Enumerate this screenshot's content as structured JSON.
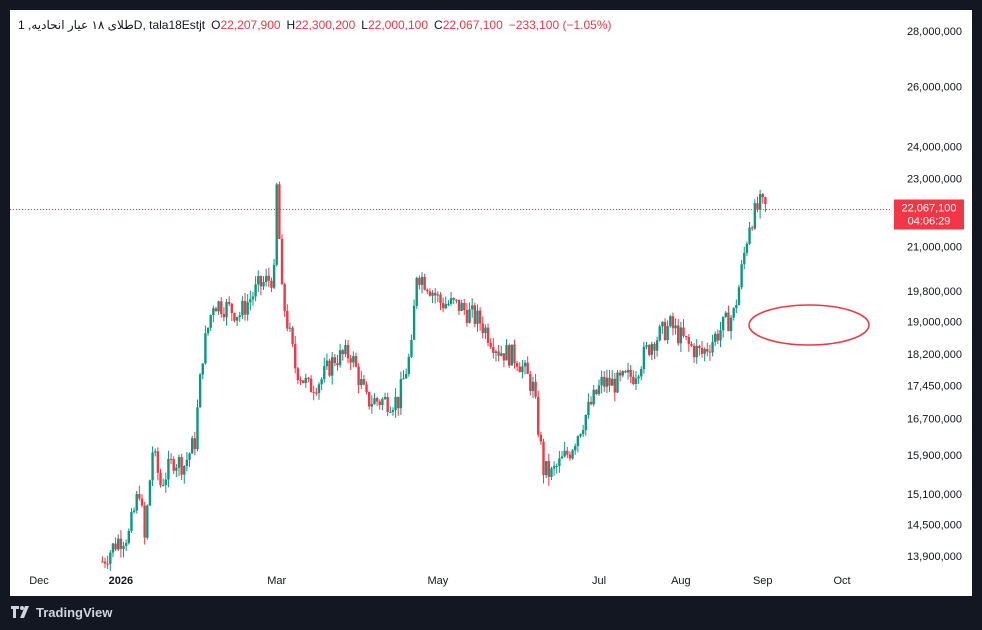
{
  "legend": {
    "symbol": "1 ,طلای ۱۸ عیار انحادیه",
    "interval": "D",
    "source": ", tala18Estjt",
    "open_label": "O",
    "open": "22,207,900",
    "high_label": "H",
    "high": "22,300,200",
    "low_label": "L",
    "low": "22,000,100",
    "close_label": "C",
    "close": "22,067,100",
    "change": "−233,100 (−1.05%)"
  },
  "price_tag": {
    "price": "22,067,100",
    "countdown": "04:06:29"
  },
  "footer": {
    "brand": "TradingView"
  },
  "colors": {
    "up": "#089981",
    "down": "#f23645",
    "background": "#ffffff",
    "frame": "#131722",
    "annotation": "#f23645"
  },
  "chart_data": {
    "type": "candlestick",
    "x_axis": {
      "ticks": [
        "Dec",
        "2026",
        "Mar",
        "May",
        "Jul",
        "Aug",
        "Sep",
        "Oct"
      ]
    },
    "y_axis": {
      "ticks": [
        "28,000,000",
        "26,000,000",
        "24,000,000",
        "23,000,000",
        "21,000,000",
        "19,800,000",
        "19,000,000",
        "18,200,000",
        "17,450,000",
        "16,700,000",
        "15,900,000",
        "15,100,000",
        "14,500,000",
        "13,900,000"
      ],
      "scale": "log",
      "range": [
        13700000,
        28500000
      ]
    },
    "current_price": 22067100,
    "anchors": [
      [
        "2025-12-25",
        13800000
      ],
      [
        "2025-12-31",
        14200000
      ],
      [
        "2026-01-04",
        14300000
      ],
      [
        "2026-01-08",
        15200000
      ],
      [
        "2026-01-10",
        14200000
      ],
      [
        "2026-01-13",
        16000000
      ],
      [
        "2026-01-16",
        15300000
      ],
      [
        "2026-01-21",
        15800000
      ],
      [
        "2026-01-25",
        15700000
      ],
      [
        "2026-01-29",
        16200000
      ],
      [
        "2026-02-01",
        18200000
      ],
      [
        "2026-02-05",
        19500000
      ],
      [
        "2026-02-09",
        19400000
      ],
      [
        "2026-02-15",
        19200000
      ],
      [
        "2026-02-22",
        19900000
      ],
      [
        "2026-02-28",
        20200000
      ],
      [
        "2026-03-01",
        22700000
      ],
      [
        "2026-03-03",
        19700000
      ],
      [
        "2026-03-08",
        17900000
      ],
      [
        "2026-03-13",
        17400000
      ],
      [
        "2026-03-18",
        17600000
      ],
      [
        "2026-03-23",
        18100000
      ],
      [
        "2026-03-29",
        18200000
      ],
      [
        "2026-04-04",
        17100000
      ],
      [
        "2026-04-09",
        17100000
      ],
      [
        "2026-04-16",
        17100000
      ],
      [
        "2026-04-21",
        18300000
      ],
      [
        "2026-04-23",
        20300000
      ],
      [
        "2026-04-27",
        20000000
      ],
      [
        "2026-05-02",
        19500000
      ],
      [
        "2026-05-09",
        19400000
      ],
      [
        "2026-05-17",
        19000000
      ],
      [
        "2026-05-24",
        18300000
      ],
      [
        "2026-05-31",
        18100000
      ],
      [
        "2026-06-06",
        17400000
      ],
      [
        "2026-06-10",
        15600000
      ],
      [
        "2026-06-13",
        15500000
      ],
      [
        "2026-06-20",
        16000000
      ],
      [
        "2026-06-27",
        16900000
      ],
      [
        "2026-07-02",
        17500000
      ],
      [
        "2026-07-08",
        17500000
      ],
      [
        "2026-07-14",
        17700000
      ],
      [
        "2026-07-21",
        18500000
      ],
      [
        "2026-07-28",
        18900000
      ],
      [
        "2026-08-04",
        18400000
      ],
      [
        "2026-08-09",
        18200000
      ],
      [
        "2026-08-16",
        18800000
      ],
      [
        "2026-08-21",
        19200000
      ],
      [
        "2026-08-23",
        19900000
      ],
      [
        "2026-08-27",
        21700000
      ],
      [
        "2026-08-31",
        22200000
      ],
      [
        "2026-09-03",
        22067100
      ]
    ],
    "annotation": "ellipse around 18,800,000–19,200,000 from mid-September to mid-October"
  }
}
